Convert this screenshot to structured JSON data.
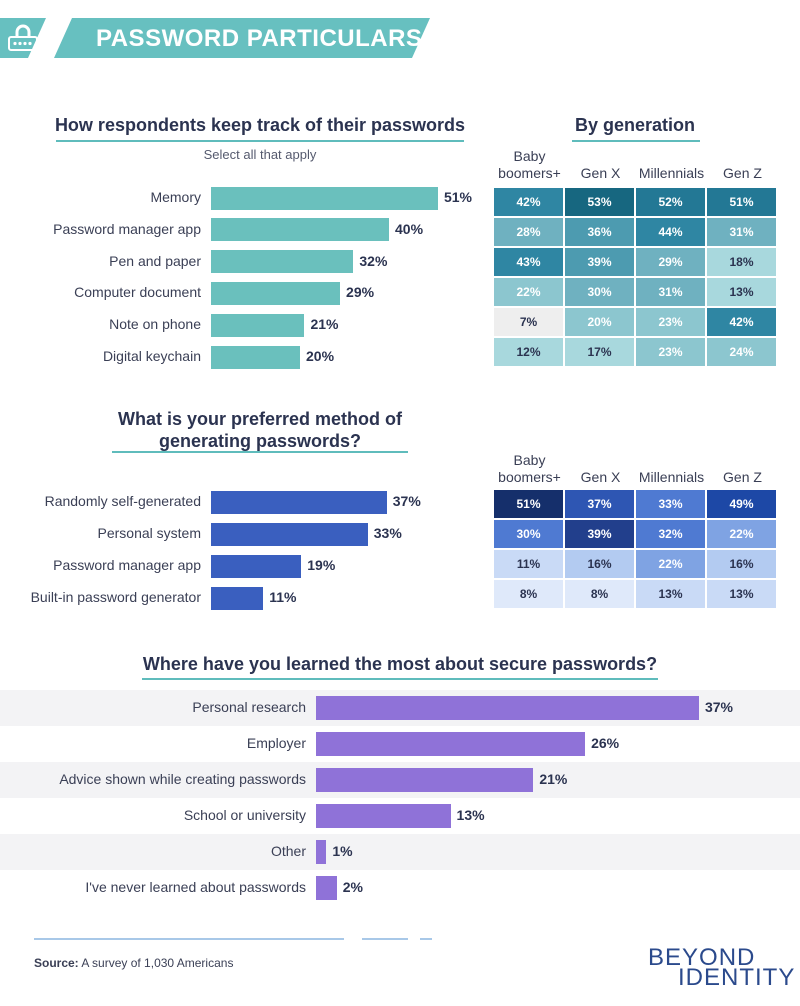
{
  "header": {
    "title": "PASSWORD PARTICULARS",
    "icon": "lock-icon"
  },
  "colors": {
    "banner": "#67c0c0",
    "teal_bar": "#6ac0bd",
    "blue_bar": "#3a5fbf",
    "purple_bar": "#8f72d8",
    "accent_line": "#5fbcbc"
  },
  "chart_data": [
    {
      "type": "bar",
      "title": "How respondents keep track of their passwords",
      "subtitle": "Select all that apply",
      "categories": [
        "Memory",
        "Password manager app",
        "Pen and paper",
        "Computer document",
        "Note on phone",
        "Digital keychain"
      ],
      "values": [
        51,
        40,
        32,
        29,
        21,
        20
      ],
      "value_labels": [
        "51%",
        "40%",
        "32%",
        "29%",
        "21%",
        "20%"
      ]
    },
    {
      "type": "heatmap",
      "title": "By generation",
      "columns": [
        "Baby boomers+",
        "Gen X",
        "Millennials",
        "Gen Z"
      ],
      "rows": [
        "Memory",
        "Password manager app",
        "Pen and paper",
        "Computer document",
        "Note on phone",
        "Digital keychain"
      ],
      "values": [
        [
          42,
          53,
          52,
          51
        ],
        [
          28,
          36,
          44,
          31
        ],
        [
          43,
          39,
          29,
          18
        ],
        [
          22,
          30,
          31,
          13
        ],
        [
          7,
          20,
          23,
          42
        ],
        [
          12,
          17,
          23,
          24
        ]
      ],
      "cell_labels": [
        [
          "42%",
          "53%",
          "52%",
          "51%"
        ],
        [
          "28%",
          "36%",
          "44%",
          "31%"
        ],
        [
          "43%",
          "39%",
          "29%",
          "18%"
        ],
        [
          "22%",
          "30%",
          "31%",
          "13%"
        ],
        [
          "7%",
          "20%",
          "23%",
          "42%"
        ],
        [
          "12%",
          "17%",
          "23%",
          "24%"
        ]
      ]
    },
    {
      "type": "bar",
      "title": "What is your preferred method of generating passwords?",
      "categories": [
        "Randomly self-generated",
        "Personal system",
        "Password manager app",
        "Built-in password generator"
      ],
      "values": [
        37,
        33,
        19,
        11
      ],
      "value_labels": [
        "37%",
        "33%",
        "19%",
        "11%"
      ]
    },
    {
      "type": "heatmap",
      "columns": [
        "Baby boomers+",
        "Gen X",
        "Millennials",
        "Gen Z"
      ],
      "rows": [
        "Randomly self-generated",
        "Personal system",
        "Password manager app",
        "Built-in password generator"
      ],
      "values": [
        [
          51,
          37,
          33,
          49
        ],
        [
          30,
          39,
          32,
          22
        ],
        [
          11,
          16,
          22,
          16
        ],
        [
          8,
          8,
          13,
          13
        ]
      ],
      "cell_labels": [
        [
          "51%",
          "37%",
          "33%",
          "49%"
        ],
        [
          "30%",
          "39%",
          "32%",
          "22%"
        ],
        [
          "11%",
          "16%",
          "22%",
          "16%"
        ],
        [
          "8%",
          "8%",
          "13%",
          "13%"
        ]
      ]
    },
    {
      "type": "bar",
      "title": "Where have you learned the most about secure passwords?",
      "categories": [
        "Personal research",
        "Employer",
        "Advice shown while creating passwords",
        "School or university",
        "Other",
        "I've never learned about passwords"
      ],
      "values": [
        37,
        26,
        21,
        13,
        1,
        2
      ],
      "value_labels": [
        "37%",
        "26%",
        "21%",
        "13%",
        "1%",
        "2%"
      ]
    }
  ],
  "footer": {
    "source_label": "Source:",
    "source_text": "A survey of 1,030 Americans",
    "logo_line1": "BEYOND",
    "logo_line2": "IDENTITY"
  }
}
